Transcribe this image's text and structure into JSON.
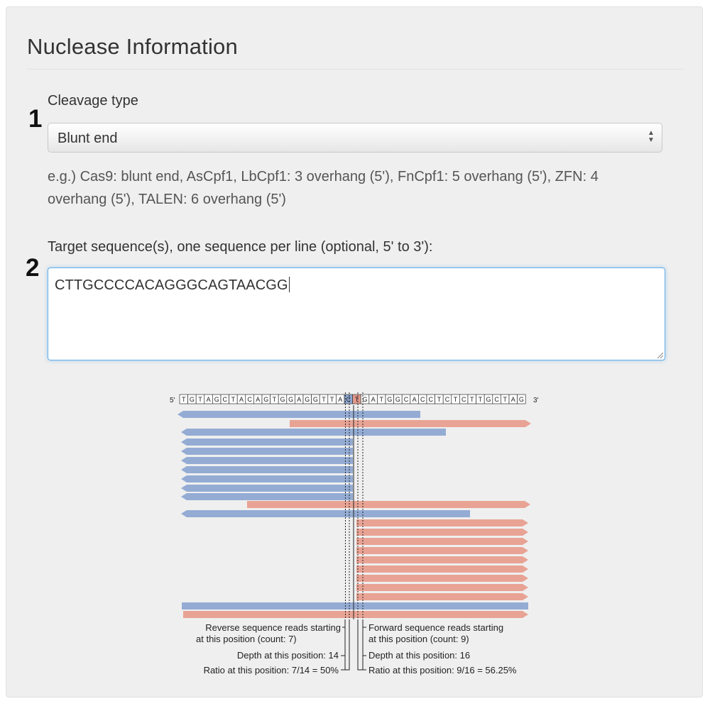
{
  "panel": {
    "title": "Nuclease Information"
  },
  "steps": {
    "one": "1",
    "two": "2"
  },
  "cleavage": {
    "label": "Cleavage type",
    "selected": "Blunt end",
    "help": "e.g.) Cas9: blunt end, AsCpf1, LbCpf1: 3 overhang (5'), FnCpf1: 5 overhang (5'), ZFN: 4 overhang (5'), TALEN: 6 overhang (5')"
  },
  "target": {
    "label": "Target sequence(s), one sequence per line (optional, 5' to 3'):",
    "value": "CTTGCCCCACAGGGCAGTAACGG"
  },
  "figure": {
    "end5": "5'",
    "end3": "3'",
    "sequence": [
      "T",
      "G",
      "T",
      "A",
      "G",
      "C",
      "T",
      "A",
      "C",
      "A",
      "G",
      "T",
      "G",
      "G",
      "A",
      "G",
      "G",
      "T",
      "T",
      "A",
      "C",
      "T",
      "G",
      "A",
      "T",
      "G",
      "G",
      "C",
      "A",
      "C",
      "C",
      "T",
      "C",
      "T",
      "C",
      "T",
      "T",
      "G",
      "C",
      "T",
      "A",
      "G"
    ],
    "highlight_reverse_index": 20,
    "highlight_forward_index": 21,
    "colors": {
      "reverse": "#94acd4",
      "forward": "#e8a394",
      "highlight_reverse": "#8fa8d2",
      "highlight_forward": "#e49a8b"
    },
    "annotations": {
      "reverse_start": "Reverse sequence reads starting",
      "reverse_start_2": "at this position (count: 7)",
      "forward_start": "Forward sequence reads starting",
      "forward_start_2": "at this position (count: 9)",
      "depth_left": "Depth at this position: 14",
      "depth_right": "Depth at this position: 16",
      "ratio_left": "Ratio at this position: 7/14 = 50%",
      "ratio_right": "Ratio at this position: 9/16 = 56.25%"
    }
  }
}
